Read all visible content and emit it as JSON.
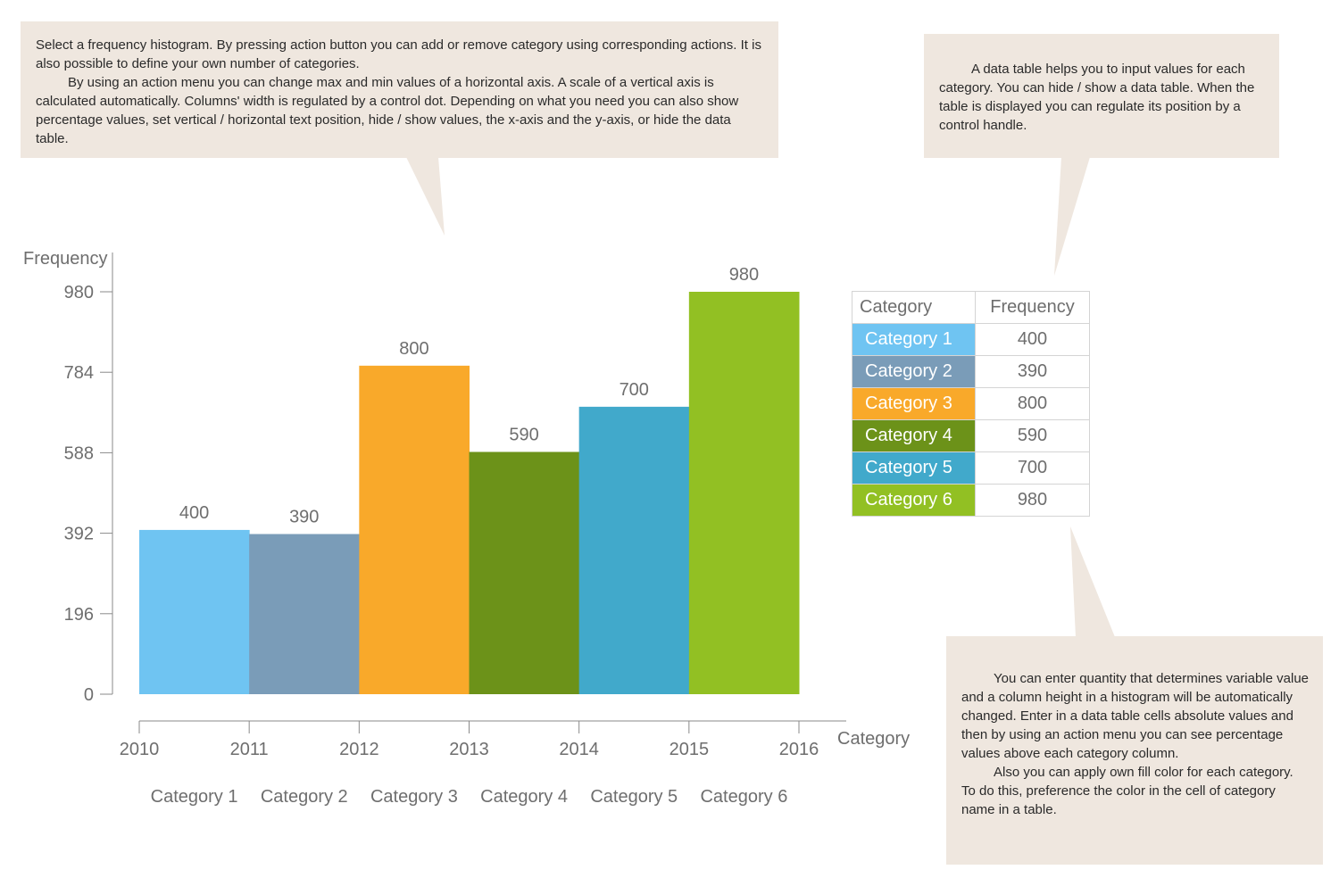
{
  "callouts": {
    "histogram": {
      "p1": "Select a frequency histogram. By pressing action button you can add or remove category using corresponding actions. It is also possible to define your own number of categories.",
      "p2": "By using an action menu you can change max and min values of a horizontal axis. A scale of a vertical axis is calculated automatically. Columns' width is regulated by a control dot. Depending on what you need you can also show percentage values, set vertical / horizontal text position, hide / show values, the x-axis and the y-axis, or hide the data table."
    },
    "data_table": {
      "p1": "A data table helps you to input values for each category. You can hide / show a data table. When the table is displayed you can regulate its position by a control handle."
    },
    "quantity": {
      "p1": "You can enter quantity that determines variable value and a column height in a histogram will be automatically changed. Enter in a data table cells absolute values and then by using an action menu you can see percentage values above each category column.",
      "p2": "Also you can apply own fill color for each category. To do this, preference the color in the cell of category name in a table."
    }
  },
  "chart_data": {
    "type": "bar",
    "subtype": "histogram",
    "ylabel": "Frequency",
    "xlabel": "Category",
    "ylim": [
      0,
      980
    ],
    "yticks": [
      0,
      196,
      392,
      588,
      784,
      980
    ],
    "x_edges": [
      "2010",
      "2011",
      "2012",
      "2013",
      "2014",
      "2015",
      "2016"
    ],
    "categories": [
      "Category 1",
      "Category 2",
      "Category 3",
      "Category 4",
      "Category 5",
      "Category 6"
    ],
    "values": [
      400,
      390,
      800,
      590,
      700,
      980
    ],
    "colors": [
      "#6fc4f2",
      "#7a9cb8",
      "#f9a92a",
      "#6c9219",
      "#41a9cb",
      "#92c023"
    ],
    "grid": false,
    "show_values": true
  },
  "table": {
    "header_category": "Category",
    "header_frequency": "Frequency"
  }
}
